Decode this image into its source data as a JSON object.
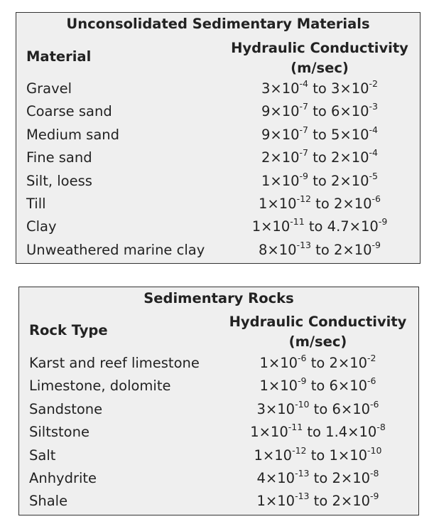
{
  "tables": [
    {
      "title": "Unconsolidated Sedimentary Materials",
      "col1": "Material",
      "col2_line1": "Hydraulic Conductivity",
      "col2_line2": "(m/sec)",
      "rows": [
        {
          "name": "Gravel",
          "a_mant": "3×10",
          "a_exp": "-4",
          "sep": " to ",
          "b_mant": "3×10",
          "b_exp": "-2"
        },
        {
          "name": "Coarse sand",
          "a_mant": "9×10",
          "a_exp": "-7",
          "sep": " to ",
          "b_mant": "6×10",
          "b_exp": "-3"
        },
        {
          "name": "Medium sand",
          "a_mant": "9×10",
          "a_exp": "-7",
          "sep": " to ",
          "b_mant": "5×10",
          "b_exp": "-4"
        },
        {
          "name": "Fine sand",
          "a_mant": "2×10",
          "a_exp": "-7",
          "sep": " to ",
          "b_mant": "2×10",
          "b_exp": "-4"
        },
        {
          "name": "Silt, loess",
          "a_mant": "1×10",
          "a_exp": "-9",
          "sep": " to ",
          "b_mant": "2×10",
          "b_exp": "-5"
        },
        {
          "name": "Till",
          "a_mant": "1×10",
          "a_exp": "-12",
          "sep": " to ",
          "b_mant": "2×10",
          "b_exp": "-6"
        },
        {
          "name": "Clay",
          "a_mant": "1×10",
          "a_exp": "-11",
          "sep": " to ",
          "b_mant": "4.7×10",
          "b_exp": "-9"
        },
        {
          "name": "Unweathered marine clay",
          "a_mant": "8×10",
          "a_exp": "-13",
          "sep": " to ",
          "b_mant": "2×10",
          "b_exp": "-9"
        }
      ]
    },
    {
      "title": "Sedimentary Rocks",
      "col1": "Rock Type",
      "col2_line1": "Hydraulic Conductivity",
      "col2_line2": "(m/sec)",
      "rows": [
        {
          "name": "Karst and reef limestone",
          "a_mant": "1×10",
          "a_exp": "-6",
          "sep": " to ",
          "b_mant": "2×10",
          "b_exp": "-2"
        },
        {
          "name": "Limestone, dolomite",
          "a_mant": "1×10",
          "a_exp": "-9",
          "sep": " to ",
          "b_mant": "6×10",
          "b_exp": "-6"
        },
        {
          "name": "Sandstone",
          "a_mant": "3×10",
          "a_exp": "-10",
          "sep": " to ",
          "b_mant": "6×10",
          "b_exp": "-6"
        },
        {
          "name": "Siltstone",
          "a_mant": "1×10",
          "a_exp": "-11",
          "sep": " to ",
          "b_mant": "1.4×10",
          "b_exp": "-8"
        },
        {
          "name": "Salt",
          "a_mant": "1×10",
          "a_exp": "-12",
          "sep": " to ",
          "b_mant": "1×10",
          "b_exp": "-10"
        },
        {
          "name": "Anhydrite",
          "a_mant": "4×10",
          "a_exp": "-13",
          "sep": " to ",
          "b_mant": "2×10",
          "b_exp": "-8"
        },
        {
          "name": "Shale",
          "a_mant": "1×10",
          "a_exp": "-13",
          "sep": " to ",
          "b_mant": "2×10",
          "b_exp": "-9"
        }
      ]
    }
  ]
}
